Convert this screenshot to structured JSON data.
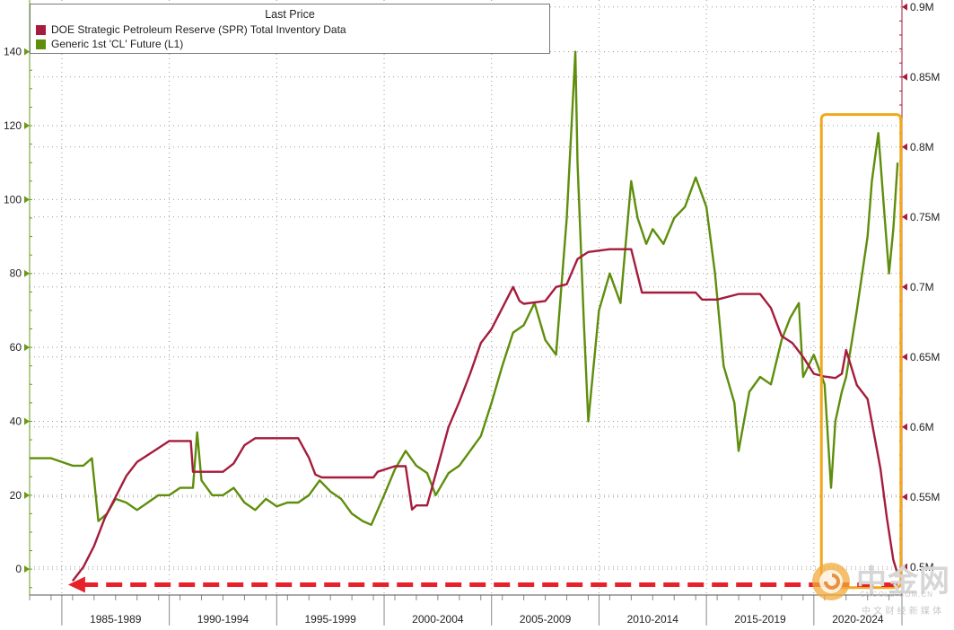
{
  "colors": {
    "spr": "#a51c3c",
    "oil": "#5e8e0c",
    "highlight": "#f0a81c",
    "arrow": "#e8202a",
    "grid": "#9a9a9a",
    "axis_left": "#6a9a18",
    "axis_right": "#a51c3c"
  },
  "watermark": {
    "brand": "中金网",
    "sub": "中 文 财 经 新 媒 体",
    "url": "CNGOLD.COM.CN",
    "icon": "coin-logo-icon"
  },
  "chart_data": {
    "type": "line",
    "title": "Last Price",
    "legend_placement": "top-left",
    "grid": true,
    "x_tick_labels": [
      "1985-1989",
      "1990-1994",
      "1995-1999",
      "2000-2004",
      "2005-2009",
      "2010-2014",
      "2015-2019",
      "2020-2024"
    ],
    "xlim": [
      1983.0,
      2023.6
    ],
    "y_left": {
      "ticks": [
        0,
        20,
        40,
        60,
        80,
        100,
        120,
        140
      ],
      "lim": [
        -7,
        154
      ]
    },
    "y_right": {
      "ticks": [
        "0.5M",
        "0.55M",
        "0.6M",
        "0.65M",
        "0.7M",
        "0.75M",
        "0.8M",
        "0.85M",
        "0.9M"
      ],
      "tick_values": [
        0.5,
        0.55,
        0.6,
        0.65,
        0.7,
        0.75,
        0.8,
        0.85,
        0.9
      ],
      "lim": [
        0.48,
        0.905
      ]
    },
    "series": [
      {
        "name": "DOE Strategic Petroleum Reserve (SPR) Total Inventory Data",
        "axis": "right",
        "x": [
          1985.0,
          1985.5,
          1986.0,
          1986.5,
          1987.0,
          1987.5,
          1988.0,
          1988.5,
          1989.0,
          1989.5,
          1990.0,
          1990.5,
          1990.6,
          1991.5,
          1992.0,
          1992.5,
          1993.0,
          1993.5,
          1994.0,
          1994.5,
          1995.0,
          1995.5,
          1996.0,
          1996.3,
          1996.6,
          1997.0,
          1998.0,
          1999.0,
          1999.2,
          2000.0,
          2000.5,
          2000.8,
          2001.0,
          2001.5,
          2002.0,
          2002.5,
          2003.0,
          2003.5,
          2004.0,
          2004.5,
          2005.0,
          2005.5,
          2005.8,
          2006.0,
          2007.0,
          2007.5,
          2008.0,
          2008.5,
          2009.0,
          2010.0,
          2011.0,
          2011.5,
          2012.0,
          2013.0,
          2014.0,
          2014.3,
          2015.0,
          2016.0,
          2017.0,
          2017.5,
          2018.0,
          2018.5,
          2019.0,
          2019.5,
          2020.0,
          2020.5,
          2020.8,
          2021.0,
          2021.5,
          2022.0,
          2022.3,
          2022.6,
          2022.9,
          2023.2,
          2023.4
        ],
        "values": [
          0.49,
          0.5,
          0.515,
          0.535,
          0.55,
          0.565,
          0.575,
          0.58,
          0.585,
          0.59,
          0.59,
          0.59,
          0.568,
          0.568,
          0.568,
          0.574,
          0.587,
          0.592,
          0.592,
          0.592,
          0.592,
          0.592,
          0.578,
          0.566,
          0.564,
          0.564,
          0.564,
          0.564,
          0.568,
          0.572,
          0.572,
          0.541,
          0.544,
          0.544,
          0.572,
          0.6,
          0.618,
          0.638,
          0.66,
          0.67,
          0.685,
          0.7,
          0.69,
          0.688,
          0.69,
          0.7,
          0.702,
          0.72,
          0.725,
          0.727,
          0.727,
          0.696,
          0.696,
          0.696,
          0.696,
          0.691,
          0.691,
          0.695,
          0.695,
          0.685,
          0.665,
          0.66,
          0.65,
          0.638,
          0.636,
          0.635,
          0.638,
          0.655,
          0.63,
          0.62,
          0.595,
          0.57,
          0.535,
          0.505,
          0.495
        ]
      },
      {
        "name": "Generic 1st 'CL' Future  (L1)",
        "axis": "left",
        "x": [
          1983.0,
          1984.0,
          1985.0,
          1985.5,
          1985.9,
          1986.2,
          1986.6,
          1987.0,
          1987.5,
          1988.0,
          1988.5,
          1989.0,
          1989.5,
          1990.0,
          1990.6,
          1990.8,
          1991.0,
          1991.5,
          1992.0,
          1992.5,
          1993.0,
          1993.5,
          1994.0,
          1994.5,
          1995.0,
          1995.5,
          1996.0,
          1996.5,
          1997.0,
          1997.5,
          1998.0,
          1998.5,
          1998.9,
          1999.5,
          2000.0,
          2000.5,
          2001.0,
          2001.5,
          2001.9,
          2002.5,
          2003.0,
          2003.5,
          2004.0,
          2004.5,
          2005.0,
          2005.5,
          2006.0,
          2006.5,
          2007.0,
          2007.5,
          2008.0,
          2008.4,
          2008.5,
          2008.8,
          2009.0,
          2009.5,
          2010.0,
          2010.5,
          2011.0,
          2011.3,
          2011.7,
          2012.0,
          2012.5,
          2013.0,
          2013.5,
          2014.0,
          2014.5,
          2014.9,
          2015.3,
          2015.8,
          2016.0,
          2016.5,
          2017.0,
          2017.5,
          2018.0,
          2018.4,
          2018.8,
          2019.0,
          2019.5,
          2020.0,
          2020.3,
          2020.5,
          2020.8,
          2021.0,
          2021.5,
          2022.0,
          2022.2,
          2022.5,
          2022.8,
          2023.0,
          2023.2,
          2023.4
        ],
        "values": [
          30,
          30,
          28,
          28,
          30,
          13,
          15,
          19,
          18,
          16,
          18,
          20,
          20,
          22,
          22,
          37,
          24,
          20,
          20,
          22,
          18,
          16,
          19,
          17,
          18,
          18,
          20,
          24,
          21,
          19,
          15,
          13,
          12,
          20,
          27,
          32,
          28,
          26,
          20,
          26,
          28,
          32,
          36,
          45,
          55,
          64,
          66,
          72,
          62,
          58,
          95,
          140,
          110,
          66,
          40,
          70,
          80,
          72,
          105,
          95,
          88,
          92,
          88,
          95,
          98,
          106,
          98,
          80,
          55,
          45,
          32,
          48,
          52,
          50,
          62,
          68,
          72,
          52,
          58,
          50,
          22,
          40,
          48,
          52,
          70,
          90,
          105,
          118,
          95,
          80,
          92,
          110
        ]
      }
    ]
  }
}
